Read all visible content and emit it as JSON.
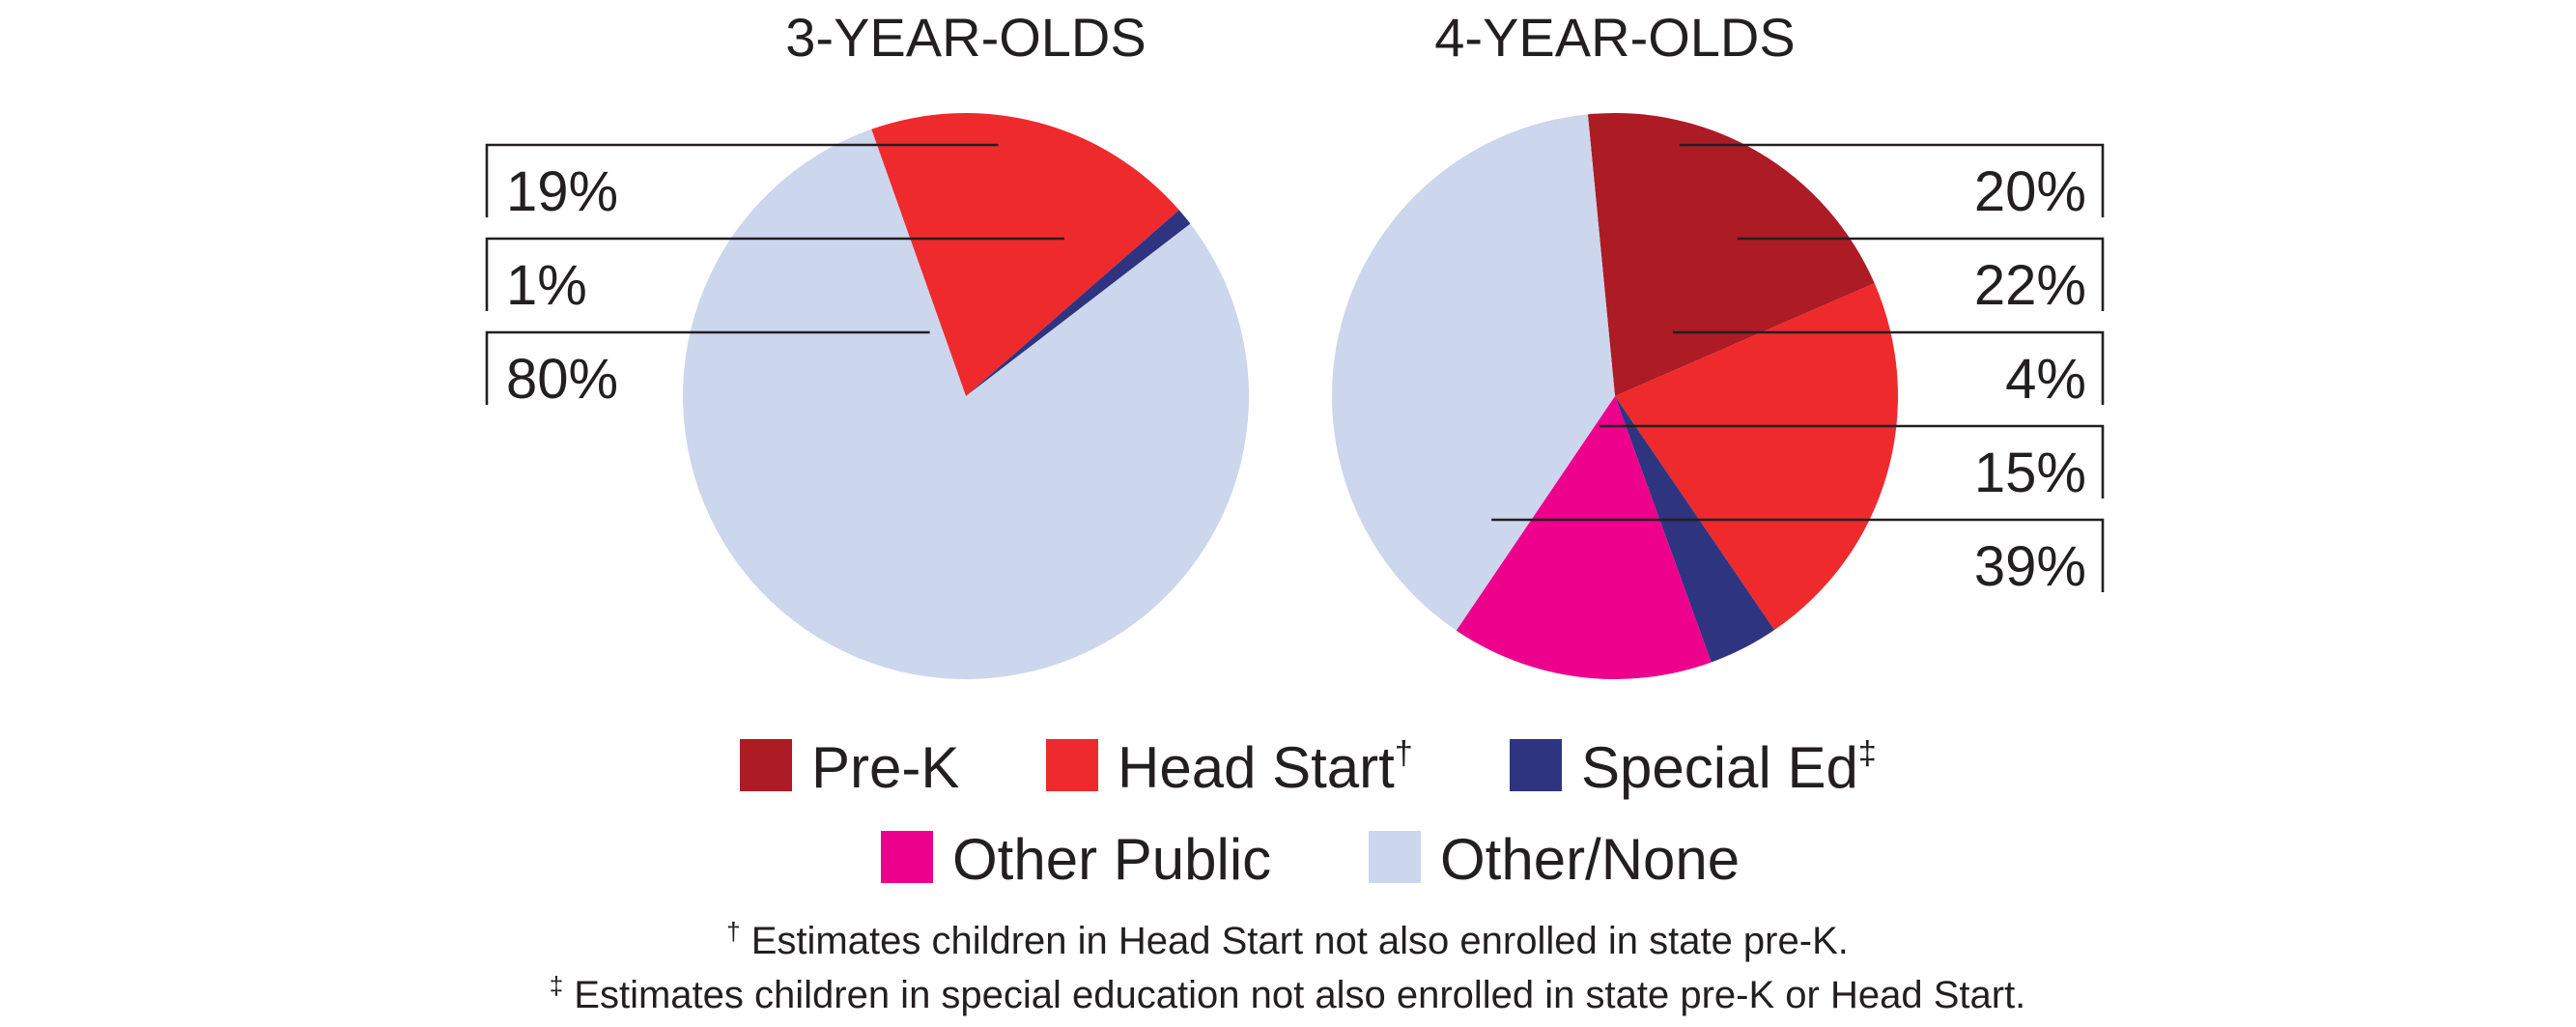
{
  "chart_data": [
    {
      "type": "pie",
      "title": "3-YEAR-OLDS",
      "slices": [
        {
          "name": "Head Start",
          "value": 19,
          "label": "19%",
          "color": "#ee2a2d"
        },
        {
          "name": "Special Ed",
          "value": 1,
          "label": "1%",
          "color": "#2e3480"
        },
        {
          "name": "Other/None",
          "value": 80,
          "label": "80%",
          "color": "#ccd6ec"
        }
      ]
    },
    {
      "type": "pie",
      "title": "4-YEAR-OLDS",
      "slices": [
        {
          "name": "Pre-K",
          "value": 20,
          "label": "20%",
          "color": "#ad1b24"
        },
        {
          "name": "Head Start",
          "value": 22,
          "label": "22%",
          "color": "#ee2a2d"
        },
        {
          "name": "Special Ed",
          "value": 4,
          "label": "4%",
          "color": "#2e3480"
        },
        {
          "name": "Other Public",
          "value": 15,
          "label": "15%",
          "color": "#ec008c"
        },
        {
          "name": "Other/None",
          "value": 39,
          "label": "39%",
          "color": "#ccd6ec"
        }
      ]
    }
  ],
  "legend": [
    {
      "label": "Pre-K",
      "sup": "",
      "color": "#ad1b24"
    },
    {
      "label": "Head Start",
      "sup": "†",
      "color": "#ee2a2d"
    },
    {
      "label": "Special Ed",
      "sup": "‡",
      "color": "#2e3480"
    },
    {
      "label": "Other Public",
      "sup": "",
      "color": "#ec008c"
    },
    {
      "label": "Other/None",
      "sup": "",
      "color": "#ccd6ec"
    }
  ],
  "footnotes": [
    {
      "symbol": "†",
      "text": "Estimates children in Head Start not also enrolled in state pre-K."
    },
    {
      "symbol": "‡",
      "text": "Estimates children in special education not also enrolled in state pre-K or Head Start."
    }
  ]
}
